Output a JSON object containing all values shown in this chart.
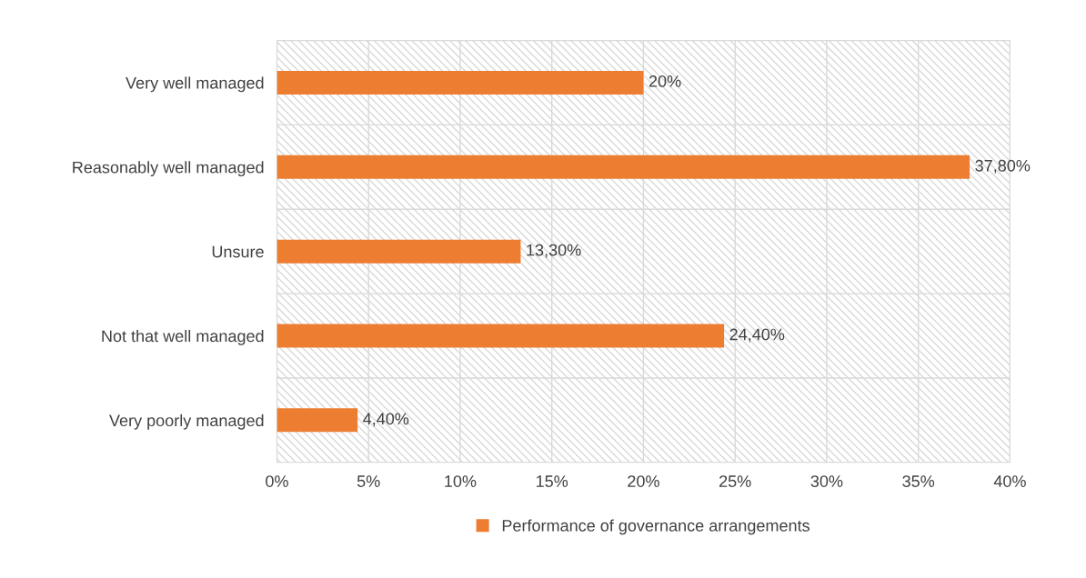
{
  "chart_data": {
    "type": "bar",
    "orientation": "horizontal",
    "categories": [
      "Very well managed",
      "Reasonably well managed",
      "Unsure",
      "Not that well managed",
      "Very poorly managed"
    ],
    "series": [
      {
        "name": "Performance of governance arrangements",
        "color": "#ed7d31",
        "values": [
          20,
          37.8,
          13.3,
          24.4,
          4.4
        ],
        "value_labels": [
          "20%",
          "37,80%",
          "13,30%",
          "24,40%",
          "4,40%"
        ]
      }
    ],
    "xlim": [
      0,
      40
    ],
    "xticks": [
      {
        "value": 0,
        "label": "0%"
      },
      {
        "value": 5,
        "label": "5%"
      },
      {
        "value": 10,
        "label": "10%"
      },
      {
        "value": 15,
        "label": "15%"
      },
      {
        "value": 20,
        "label": "20%"
      },
      {
        "value": 25,
        "label": "25%"
      },
      {
        "value": 30,
        "label": "30%"
      },
      {
        "value": 35,
        "label": "35%"
      },
      {
        "value": 40,
        "label": "40%"
      }
    ],
    "grid": true,
    "legend": "bottom"
  }
}
